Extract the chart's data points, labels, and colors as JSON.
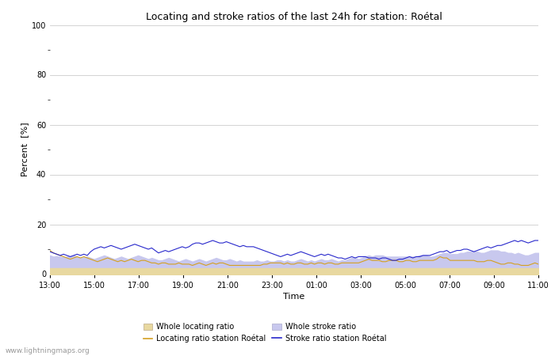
{
  "title": "Locating and stroke ratios of the last 24h for station: Roétal",
  "xlabel": "Time",
  "ylabel": "Percent  [%]",
  "ylim": [
    0,
    100
  ],
  "yticks": [
    0,
    20,
    40,
    60,
    80,
    100
  ],
  "yminor_ticks": [
    10,
    30,
    50,
    70,
    90
  ],
  "xtick_labels": [
    "13:00",
    "15:00",
    "17:00",
    "19:00",
    "21:00",
    "23:00",
    "01:00",
    "03:00",
    "05:00",
    "07:00",
    "09:00",
    "11:00"
  ],
  "watermark": "www.lightningmaps.org",
  "bg_color": "#ffffff",
  "plot_bg_color": "#ffffff",
  "grid_color": "#cccccc",
  "whole_locating_fill_color": "#e8d8a0",
  "whole_stroke_fill_color": "#c8c8ee",
  "locating_station_color": "#d4a020",
  "stroke_station_color": "#2828cc",
  "n_points": 145,
  "whole_locating": [
    2.5,
    2.5,
    2.5,
    2.5,
    2.5,
    2.5,
    2.5,
    2.5,
    2.5,
    2.5,
    2.5,
    2.5,
    2.5,
    2.5,
    2.5,
    2.5,
    2.5,
    2.5,
    2.5,
    2.5,
    2.5,
    2.5,
    2.5,
    2.5,
    2.5,
    2.5,
    2.5,
    2.5,
    2.5,
    2.5,
    2.5,
    2.5,
    2.5,
    2.5,
    2.5,
    2.5,
    2.5,
    2.5,
    2.5,
    2.5,
    2.5,
    2.5,
    2.5,
    2.5,
    2.5,
    2.5,
    2.5,
    2.5,
    2.5,
    2.5,
    2.5,
    2.5,
    2.5,
    2.5,
    2.5,
    2.5,
    2.5,
    2.5,
    2.5,
    2.5,
    2.5,
    2.5,
    2.5,
    2.5,
    2.5,
    2.5,
    2.5,
    2.5,
    2.5,
    2.5,
    2.5,
    2.5,
    2.5,
    2.5,
    2.5,
    2.5,
    2.5,
    2.5,
    2.5,
    2.5,
    2.5,
    2.5,
    2.5,
    2.5,
    2.5,
    2.5,
    2.5,
    2.5,
    2.5,
    2.5,
    2.5,
    2.5,
    2.5,
    2.5,
    2.5,
    2.5,
    2.5,
    2.5,
    2.5,
    2.5,
    2.5,
    2.5,
    2.5,
    2.5,
    2.5,
    2.5,
    2.5,
    2.5,
    2.5,
    2.5,
    2.5,
    2.5,
    2.5,
    2.5,
    2.5,
    2.5,
    2.5,
    2.5,
    2.5,
    2.5,
    2.5,
    2.5,
    2.5,
    2.5,
    2.5,
    2.5,
    2.5,
    2.5,
    2.5,
    2.5,
    2.5,
    2.5,
    2.5,
    2.5,
    2.5,
    2.5,
    2.5,
    2.5,
    2.5,
    2.5,
    2.5,
    2.5,
    2.5,
    2.5,
    2.5
  ],
  "whole_stroke": [
    7.5,
    7.0,
    7.2,
    7.0,
    6.8,
    7.0,
    7.2,
    7.5,
    7.0,
    6.5,
    6.8,
    7.0,
    6.5,
    6.0,
    6.5,
    7.0,
    7.5,
    7.0,
    6.5,
    6.0,
    6.5,
    7.0,
    6.5,
    6.0,
    6.5,
    7.0,
    7.5,
    7.0,
    6.5,
    6.0,
    6.5,
    6.0,
    5.5,
    5.5,
    6.0,
    6.5,
    6.0,
    5.5,
    5.0,
    5.5,
    6.0,
    5.5,
    5.0,
    5.5,
    6.0,
    5.5,
    5.0,
    5.5,
    6.0,
    6.5,
    6.0,
    5.5,
    5.5,
    6.0,
    5.5,
    5.0,
    5.5,
    5.0,
    5.0,
    5.0,
    5.0,
    5.5,
    5.0,
    5.0,
    5.5,
    5.0,
    5.0,
    5.5,
    5.5,
    5.0,
    5.5,
    5.0,
    5.0,
    5.5,
    6.0,
    5.5,
    5.0,
    5.5,
    5.0,
    5.5,
    6.0,
    5.5,
    5.5,
    6.0,
    5.5,
    5.0,
    5.5,
    5.5,
    6.0,
    6.5,
    6.5,
    6.0,
    6.5,
    7.0,
    7.5,
    7.0,
    7.5,
    7.5,
    7.5,
    7.0,
    7.0,
    7.0,
    7.0,
    7.0,
    7.0,
    7.0,
    7.0,
    7.0,
    7.0,
    7.5,
    7.5,
    7.5,
    7.0,
    7.0,
    7.5,
    8.0,
    8.5,
    8.5,
    8.0,
    8.0,
    8.0,
    8.5,
    8.5,
    9.0,
    9.0,
    9.0,
    9.0,
    8.5,
    8.5,
    9.0,
    9.5,
    9.5,
    9.5,
    9.0,
    9.0,
    8.5,
    8.5,
    8.0,
    8.5,
    8.0,
    7.5,
    7.5,
    8.0,
    8.5,
    8.5
  ],
  "locating_station": [
    9.5,
    8.5,
    8.0,
    7.5,
    7.0,
    6.5,
    6.0,
    6.5,
    7.0,
    6.5,
    7.0,
    6.5,
    6.0,
    5.5,
    5.0,
    5.5,
    6.0,
    6.5,
    6.0,
    5.5,
    5.0,
    5.5,
    5.0,
    5.5,
    6.0,
    5.5,
    5.0,
    5.5,
    5.5,
    5.0,
    4.5,
    4.5,
    4.0,
    4.5,
    4.5,
    4.0,
    4.0,
    4.0,
    4.5,
    4.0,
    4.0,
    4.0,
    3.5,
    4.0,
    4.5,
    4.0,
    3.5,
    4.0,
    4.5,
    4.0,
    4.5,
    4.5,
    4.0,
    3.5,
    3.5,
    3.5,
    3.5,
    3.5,
    3.5,
    3.5,
    3.5,
    3.5,
    3.5,
    4.0,
    4.0,
    4.5,
    4.5,
    4.5,
    4.5,
    4.0,
    4.5,
    4.0,
    4.0,
    4.5,
    4.5,
    4.0,
    4.0,
    4.5,
    4.0,
    4.5,
    4.5,
    4.0,
    4.5,
    4.5,
    4.0,
    4.0,
    4.5,
    4.5,
    4.5,
    4.5,
    4.5,
    4.5,
    5.0,
    5.5,
    6.0,
    5.5,
    5.5,
    5.5,
    5.0,
    5.0,
    5.5,
    5.5,
    5.5,
    5.0,
    5.0,
    5.5,
    5.5,
    5.0,
    5.0,
    5.5,
    5.5,
    5.5,
    5.5,
    5.5,
    6.0,
    7.0,
    6.5,
    6.5,
    5.5,
    5.5,
    5.5,
    5.5,
    5.5,
    5.5,
    5.5,
    5.5,
    5.0,
    5.0,
    5.0,
    5.5,
    5.5,
    5.0,
    4.5,
    4.0,
    4.0,
    4.5,
    4.5,
    4.0,
    4.0,
    3.5,
    3.5,
    3.5,
    4.0,
    4.5,
    4.0
  ],
  "stroke_station": [
    9.0,
    8.5,
    8.0,
    7.5,
    8.0,
    7.5,
    7.0,
    7.5,
    8.0,
    7.5,
    8.0,
    7.5,
    9.0,
    10.0,
    10.5,
    11.0,
    10.5,
    11.0,
    11.5,
    11.0,
    10.5,
    10.0,
    10.5,
    11.0,
    11.5,
    12.0,
    11.5,
    11.0,
    10.5,
    10.0,
    10.5,
    9.5,
    8.5,
    9.0,
    9.5,
    9.0,
    9.5,
    10.0,
    10.5,
    11.0,
    10.5,
    11.0,
    12.0,
    12.5,
    12.5,
    12.0,
    12.5,
    13.0,
    13.5,
    13.0,
    12.5,
    12.5,
    13.0,
    12.5,
    12.0,
    11.5,
    11.0,
    11.5,
    11.0,
    11.0,
    11.0,
    10.5,
    10.0,
    9.5,
    9.0,
    8.5,
    8.0,
    7.5,
    7.0,
    7.5,
    8.0,
    7.5,
    8.0,
    8.5,
    9.0,
    8.5,
    8.0,
    7.5,
    7.0,
    7.5,
    8.0,
    7.5,
    8.0,
    7.5,
    7.0,
    6.5,
    6.5,
    6.0,
    6.5,
    7.0,
    6.5,
    7.0,
    7.0,
    7.0,
    6.5,
    6.5,
    6.5,
    6.0,
    6.5,
    6.5,
    6.0,
    5.5,
    5.5,
    6.0,
    6.0,
    6.5,
    7.0,
    6.5,
    7.0,
    7.0,
    7.5,
    7.5,
    7.5,
    8.0,
    8.5,
    9.0,
    9.0,
    9.5,
    8.5,
    9.0,
    9.5,
    9.5,
    10.0,
    10.0,
    9.5,
    9.0,
    9.5,
    10.0,
    10.5,
    11.0,
    10.5,
    11.0,
    11.5,
    11.5,
    12.0,
    12.5,
    13.0,
    13.5,
    13.0,
    13.5,
    13.0,
    12.5,
    13.0,
    13.5,
    13.5
  ]
}
